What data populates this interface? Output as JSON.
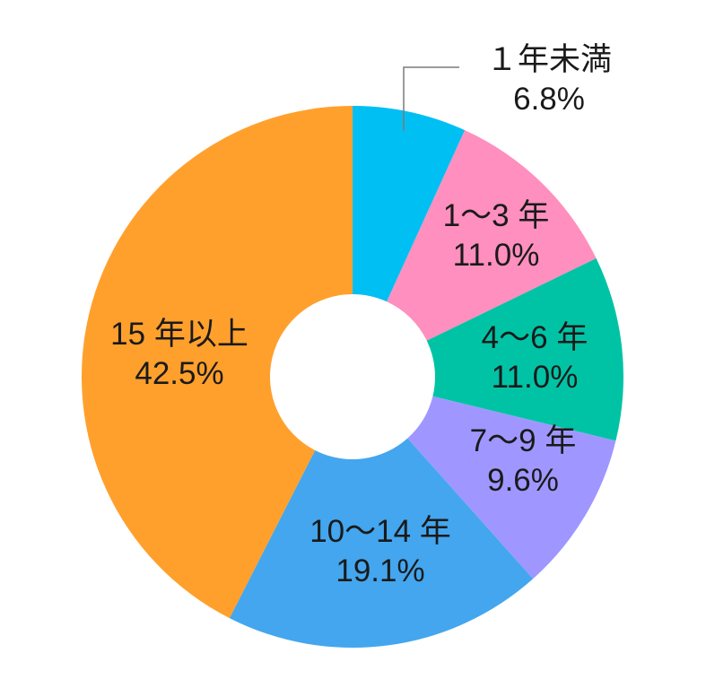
{
  "chart_data": {
    "type": "pie",
    "variant": "donut",
    "title": "",
    "slices": [
      {
        "label": "１年未満",
        "value": 6.8,
        "value_label": "6.8%",
        "color": "#00bff3"
      },
      {
        "label": "1～3 年",
        "value": 11.0,
        "value_label": "11.0%",
        "color": "#ff8fbe"
      },
      {
        "label": "4～6 年",
        "value": 11.0,
        "value_label": "11.0%",
        "color": "#00c3a5"
      },
      {
        "label": "7～9 年",
        "value": 9.6,
        "value_label": "9.6%",
        "color": "#9f97ff"
      },
      {
        "label": "10～14 年",
        "value": 19.1,
        "value_label": "19.1%",
        "color": "#43a6ee"
      },
      {
        "label": "15 年以上",
        "value": 42.5,
        "value_label": "42.5%",
        "color": "#ffa02d"
      }
    ],
    "start_angle": "top (12 o'clock)",
    "direction": "clockwise",
    "legend": "none",
    "labels": "on slices; first slice labeled outside with leader line"
  }
}
